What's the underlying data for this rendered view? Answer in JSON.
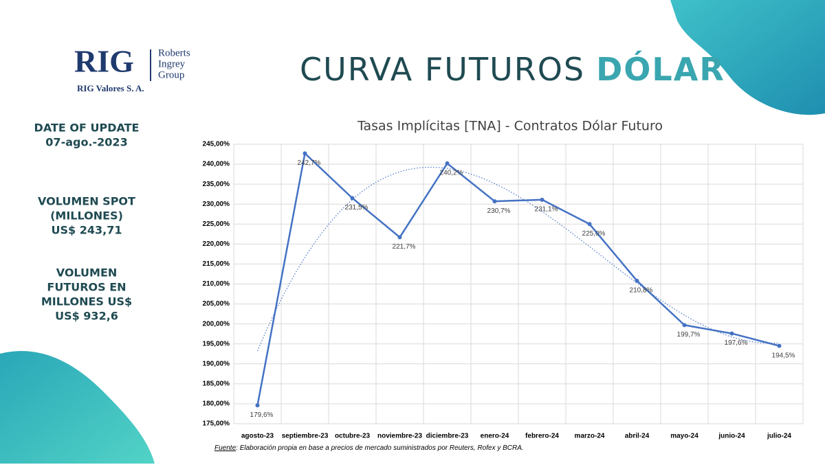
{
  "slide": {
    "logo": {
      "mark": "RIG",
      "name_lines": [
        "Roberts",
        "Ingrey",
        "Group"
      ],
      "subtitle": "RIG Valores S. A."
    },
    "title_main": "CURVA FUTUROS",
    "title_accent": "DÓLAR",
    "sidebar": [
      [
        "DATE OF UPDATE",
        "07-ago.-2023"
      ],
      [
        "VOLUMEN SPOT",
        "(MILLONES)",
        "US$ 243,71"
      ],
      [
        "VOLUMEN",
        "FUTUROS EN",
        "MILLONES US$",
        "US$ 932,6"
      ]
    ],
    "source_label": "Fuente",
    "source_text": ": Elaboración propia en base a precios de mercado suministrados por Reuters, Rofex y BCRA."
  },
  "chart_data": {
    "type": "line",
    "title": "Tasas Implícitas [TNA] - Contratos Dólar Futuro",
    "categories": [
      "agosto-23",
      "septiembre-23",
      "octubre-23",
      "noviembre-23",
      "diciembre-23",
      "enero-24",
      "febrero-24",
      "marzo-24",
      "abril-24",
      "mayo-24",
      "junio-24",
      "julio-24"
    ],
    "values": [
      179.6,
      242.7,
      231.5,
      221.7,
      240.2,
      230.7,
      231.1,
      225.0,
      210.8,
      199.7,
      197.6,
      194.5
    ],
    "value_labels": [
      "179,6%",
      "242,7%",
      "231,5%",
      "221,7%",
      "240,2%",
      "230,7%",
      "231,1%",
      "225,0%",
      "210,8%",
      "199,7%",
      "197,6%",
      "194,5%"
    ],
    "color": "#4472c4",
    "trendline": true,
    "grid": true,
    "ylim": [
      175,
      245
    ],
    "yticks": [
      {
        "value": 175,
        "label": "175,00%"
      },
      {
        "value": 180,
        "label": "180,00%"
      },
      {
        "value": 185,
        "label": "185,00%"
      },
      {
        "value": 190,
        "label": "190,00%"
      },
      {
        "value": 195,
        "label": "195,00%"
      },
      {
        "value": 200,
        "label": "200,00%"
      },
      {
        "value": 205,
        "label": "205,00%"
      },
      {
        "value": 210,
        "label": "210,00%"
      },
      {
        "value": 215,
        "label": "215,00%"
      },
      {
        "value": 220,
        "label": "220,00%"
      },
      {
        "value": 225,
        "label": "225,00%"
      },
      {
        "value": 230,
        "label": "230,00%"
      },
      {
        "value": 235,
        "label": "235,00%"
      },
      {
        "value": 240,
        "label": "240,00%"
      },
      {
        "value": 245,
        "label": "245,00%"
      }
    ]
  }
}
